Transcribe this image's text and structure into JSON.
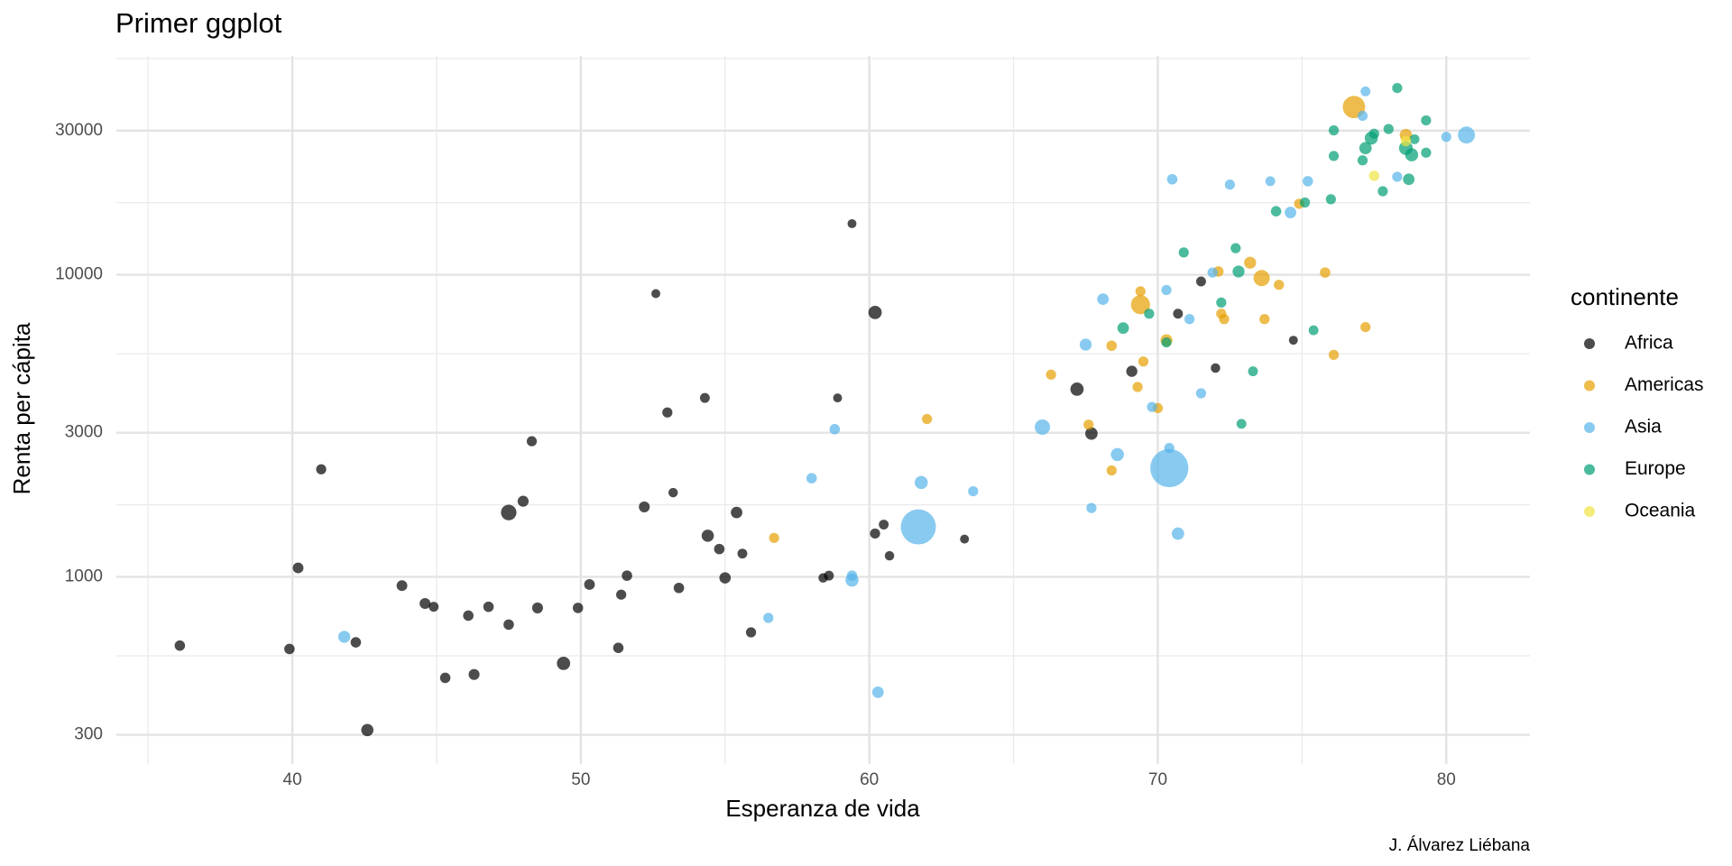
{
  "chart_data": {
    "type": "scatter",
    "title": "Primer ggplot",
    "x_label": "Esperanza de vida",
    "y_label": "Renta per cápita",
    "legend_title": "continente",
    "caption": "J. Álvarez Liébana",
    "xlim": [
      33.9,
      82.9
    ],
    "ylim": [
      240,
      53000
    ],
    "xticks": [
      40,
      50,
      60,
      70,
      80
    ],
    "yticks": [
      300,
      1000,
      3000,
      10000,
      30000
    ],
    "y_log": true,
    "grid": true,
    "legend_position": "right",
    "opacity": 0.7,
    "series": [
      {
        "name": "Africa",
        "color": "#000000",
        "x": [
          36.1,
          39.9,
          40.2,
          41.0,
          42.2,
          42.6,
          43.8,
          44.6,
          44.9,
          45.3,
          46.1,
          46.3,
          46.8,
          47.5,
          47.5,
          48.0,
          48.3,
          48.5,
          49.4,
          49.9,
          50.3,
          51.3,
          51.4,
          51.6,
          52.2,
          52.6,
          53.0,
          53.2,
          53.4,
          54.3,
          54.4,
          54.8,
          55.0,
          55.4,
          55.6,
          55.9,
          58.4,
          58.6,
          58.9,
          59.4,
          60.2,
          60.2,
          60.5,
          60.7,
          63.3,
          67.2,
          67.7,
          69.1,
          70.7,
          71.5,
          72.0,
          74.7
        ],
        "values": [
          592,
          577,
          1070,
          2270,
          607,
          311,
          935,
          816,
          796,
          463,
          744,
          475,
          796,
          695,
          1633,
          1779,
          2810,
          789,
          517,
          789,
          943,
          582,
          873,
          1009,
          1704,
          8660,
          3500,
          1900,
          919,
          3910,
          1368,
          1236,
          992,
          1633,
          1194,
          655,
          992,
          1009,
          3910,
          14760,
          7500,
          1391,
          1489,
          1174,
          1333,
          4180,
          2980,
          4790,
          7430,
          9500,
          4910,
          6070
        ],
        "sizes": [
          10,
          10,
          12,
          8,
          10,
          28,
          12,
          14,
          6,
          10,
          10,
          14,
          10,
          10,
          85,
          15,
          8,
          14,
          43,
          10,
          12,
          10,
          8,
          10,
          14,
          2,
          8,
          4,
          10,
          6,
          28,
          10,
          18,
          20,
          6,
          8,
          4,
          6,
          2,
          2,
          43,
          8,
          6,
          4,
          2,
          43,
          30,
          16,
          6,
          6,
          4,
          2
        ]
      },
      {
        "name": "Americas",
        "color": "#E69F00",
        "x": [
          56.7,
          62.0,
          66.3,
          67.6,
          68.4,
          68.4,
          69.3,
          69.4,
          69.4,
          69.5,
          70.0,
          70.3,
          72.1,
          72.2,
          72.3,
          73.2,
          73.6,
          73.7,
          74.2,
          74.9,
          75.8,
          76.1,
          77.2,
          76.8,
          78.6
        ],
        "values": [
          1345,
          3330,
          4670,
          3190,
          2250,
          5820,
          4250,
          7960,
          8810,
          5160,
          3620,
          6070,
          10250,
          7430,
          7130,
          10960,
          9750,
          7130,
          9260,
          17180,
          10170,
          5430,
          6710,
          35900,
          29000
        ],
        "sizes": [
          8,
          8,
          8,
          8,
          8,
          10,
          8,
          180,
          8,
          8,
          8,
          25,
          10,
          8,
          8,
          25,
          100,
          8,
          8,
          8,
          10,
          8,
          8,
          300,
          30
        ]
      },
      {
        "name": "Asia",
        "color": "#56B4E9",
        "x": [
          41.8,
          56.5,
          58.0,
          58.8,
          59.4,
          59.4,
          60.3,
          61.7,
          61.8,
          63.6,
          66.0,
          67.7,
          68.1,
          67.5,
          68.6,
          69.8,
          70.3,
          70.4,
          70.4,
          70.7,
          70.5,
          71.1,
          71.5,
          71.9,
          72.5,
          73.9,
          74.6,
          75.2,
          77.2,
          77.1,
          78.3,
          80.0,
          80.7
        ],
        "values": [
          633,
          731,
          2120,
          3080,
          1009,
          975,
          415,
          1463,
          2053,
          1920,
          3130,
          1690,
          8300,
          5870,
          2540,
          3650,
          8900,
          2670,
          2290,
          1390,
          20700,
          7130,
          4050,
          10170,
          19870,
          20400,
          16070,
          20400,
          40450,
          33570,
          21100,
          28600,
          29000
        ],
        "sizes": [
          25,
          8,
          10,
          10,
          10,
          40,
          20,
          1050,
          40,
          8,
          80,
          8,
          20,
          25,
          40,
          8,
          8,
          8,
          1300,
          30,
          10,
          8,
          8,
          8,
          8,
          6,
          20,
          10,
          6,
          8,
          8,
          8,
          120
        ]
      },
      {
        "name": "Europe",
        "color": "#009E73",
        "x": [
          68.8,
          69.7,
          70.3,
          70.9,
          72.2,
          72.8,
          72.7,
          73.3,
          72.9,
          74.1,
          75.1,
          75.4,
          76.0,
          76.1,
          76.1,
          77.1,
          77.2,
          77.4,
          77.5,
          77.8,
          78.0,
          78.3,
          78.6,
          78.8,
          78.7,
          78.9,
          79.3,
          79.3
        ],
        "values": [
          6660,
          7430,
          5970,
          11850,
          8090,
          10250,
          12240,
          4790,
          3210,
          16220,
          17340,
          6550,
          17780,
          30060,
          24720,
          23920,
          26250,
          28330,
          29300,
          18890,
          30360,
          41500,
          26250,
          24940,
          20700,
          28100,
          25350,
          32430
        ],
        "sizes": [
          20,
          8,
          8,
          8,
          8,
          25,
          8,
          6,
          6,
          10,
          8,
          6,
          8,
          8,
          8,
          8,
          30,
          40,
          8,
          8,
          8,
          8,
          50,
          40,
          20,
          6,
          8,
          8
        ]
      },
      {
        "name": "Oceania",
        "color": "#F0E442",
        "x": [
          77.5,
          78.6
        ],
        "values": [
          21250,
          27700
        ],
        "sizes": [
          10,
          10
        ]
      }
    ]
  }
}
